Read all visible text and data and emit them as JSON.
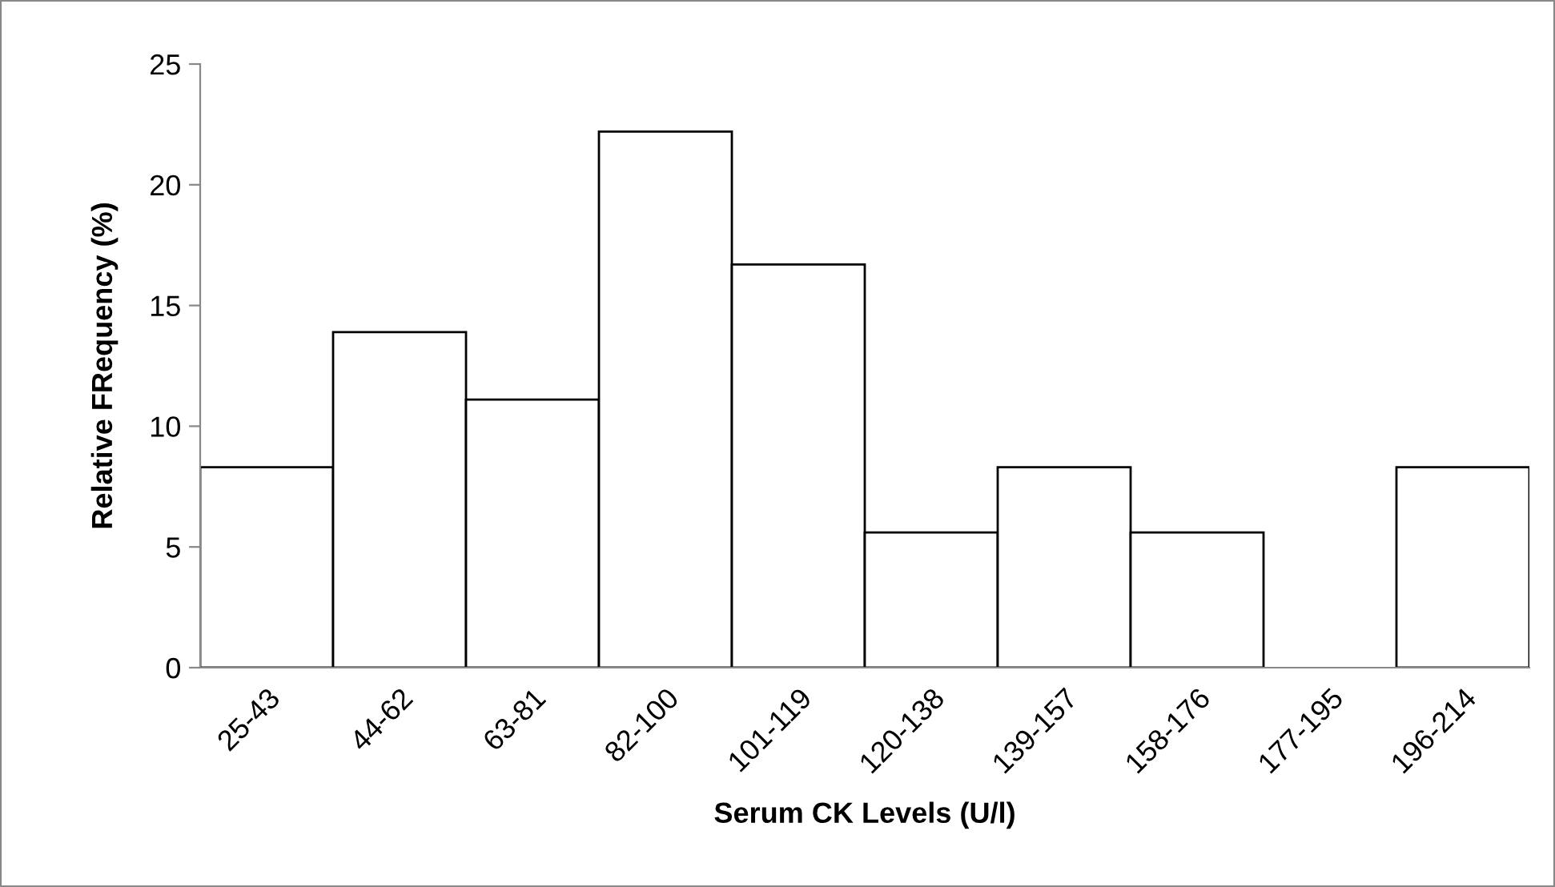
{
  "chart_data": {
    "type": "bar",
    "xlabel": "Serum CK Levels (U/l)",
    "ylabel": "Relative FRequency (%)",
    "categories": [
      "25-43",
      "44-62",
      "63-81",
      "82-100",
      "101-119",
      "120-138",
      "139-157",
      "158-176",
      "177-195",
      "196-214"
    ],
    "values": [
      8.3,
      13.9,
      11.1,
      22.2,
      16.7,
      5.6,
      8.3,
      5.6,
      0,
      8.3
    ],
    "color": "#ffffff",
    "ylim": [
      0,
      25
    ],
    "yticks": [
      0,
      5,
      10,
      15,
      20,
      25
    ],
    "grid": false,
    "legend": false
  }
}
